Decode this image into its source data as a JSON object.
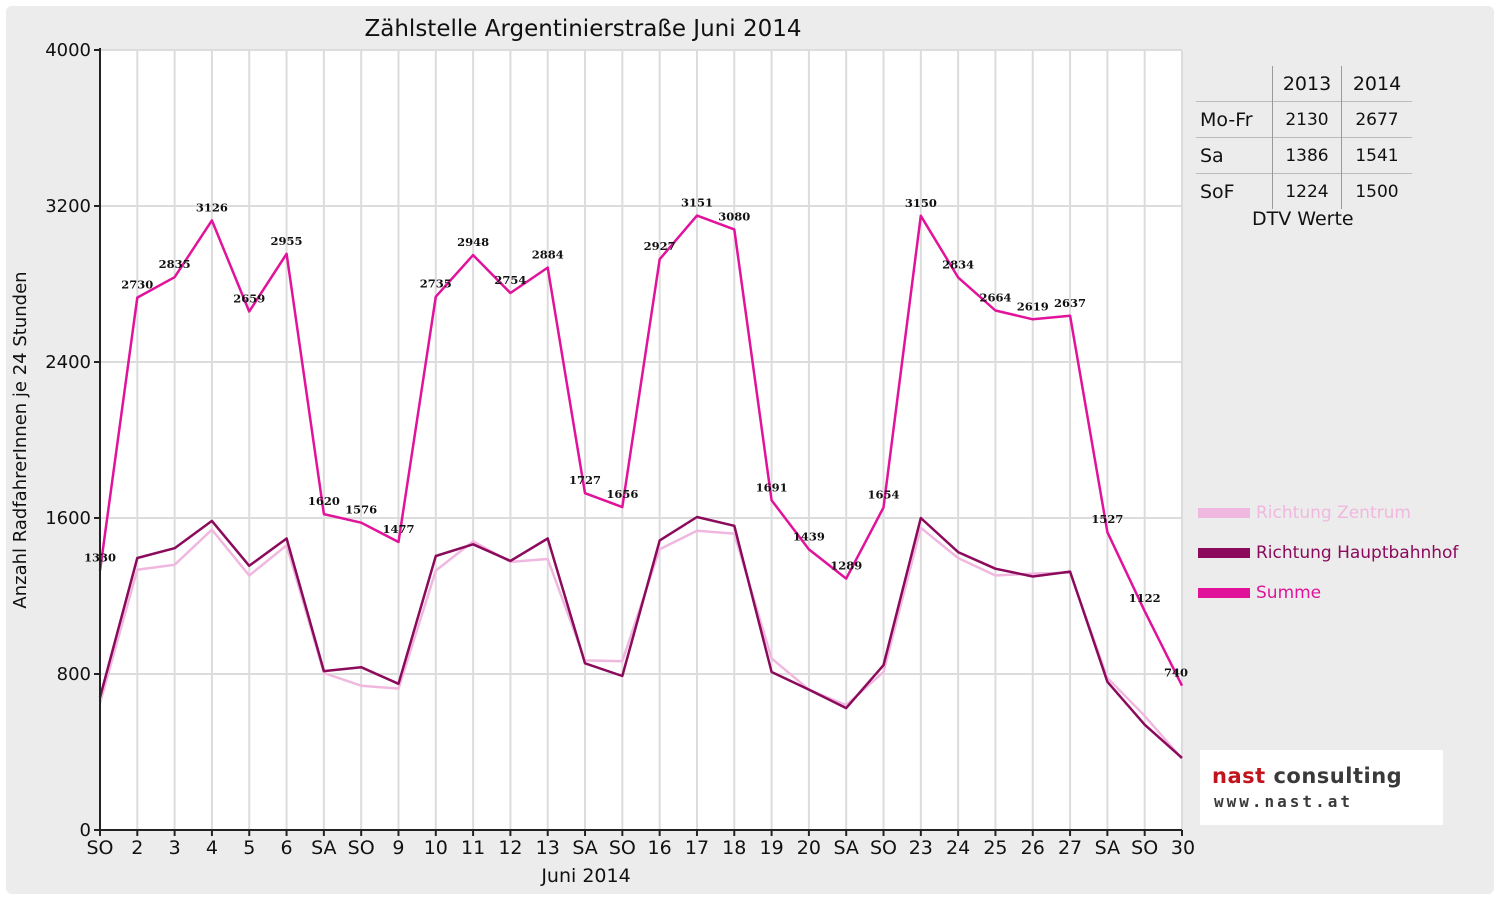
{
  "chart_data": {
    "type": "line",
    "title": "Zählstelle Argentinierstraße Juni 2014",
    "xlabel": "Juni 2014",
    "ylabel": "Anzahl RadfahrerInnen je 24 Stunden",
    "ylim": [
      0,
      4000
    ],
    "yticks": [
      0,
      800,
      1600,
      2400,
      3200,
      4000
    ],
    "grid": true,
    "legend_position": "right",
    "categories": [
      "SO",
      "2",
      "3",
      "4",
      "5",
      "6",
      "SA",
      "SO",
      "9",
      "10",
      "11",
      "12",
      "13",
      "SA",
      "SO",
      "16",
      "17",
      "18",
      "19",
      "20",
      "SA",
      "SO",
      "23",
      "24",
      "25",
      "26",
      "27",
      "SA",
      "SO",
      "30"
    ],
    "red_categories": [
      0,
      7,
      8,
      14,
      18,
      21,
      28
    ],
    "series": [
      {
        "name": "Richtung Zentrum",
        "color": "#f0b8de",
        "values": [
          650,
          1335,
          1360,
          1540,
          1305,
          1460,
          805,
          740,
          725,
          1330,
          1480,
          1375,
          1390,
          870,
          865,
          1440,
          1535,
          1520,
          880,
          720,
          640,
          810,
          1550,
          1395,
          1305,
          1315,
          1320,
          780,
          585,
          365
        ]
      },
      {
        "name": "Richtung Hauptbahnhof",
        "color": "#8b0a5c",
        "values": [
          680,
          1395,
          1445,
          1585,
          1355,
          1495,
          815,
          835,
          750,
          1405,
          1465,
          1380,
          1495,
          855,
          790,
          1485,
          1605,
          1560,
          810,
          720,
          625,
          845,
          1600,
          1425,
          1340,
          1300,
          1325,
          760,
          540,
          370
        ]
      },
      {
        "name": "Summe",
        "color": "#e0139a",
        "values": [
          1330,
          2730,
          2835,
          3126,
          2659,
          2955,
          1620,
          1576,
          1477,
          2735,
          2948,
          2754,
          2884,
          1727,
          1656,
          2927,
          3151,
          3080,
          1691,
          1439,
          1289,
          1654,
          3150,
          2834,
          2664,
          2619,
          2637,
          1527,
          1122,
          740
        ],
        "data_labels": [
          "1330",
          "2730",
          "2835",
          "3126",
          "2659",
          "2955",
          "1620",
          "1576",
          "1477",
          "2735",
          "2948",
          "2754",
          "2884",
          "1727",
          "1656",
          "2927",
          "3151",
          "3080",
          "1691",
          "1439",
          "1289",
          "1654",
          "3150",
          "2834",
          "2664",
          "2619",
          "2637",
          "1527",
          "1122",
          "740"
        ]
      }
    ]
  },
  "dtv_table": {
    "caption": "DTV Werte",
    "columns": [
      "",
      "2013",
      "2014"
    ],
    "rows": [
      {
        "label": "Mo-Fr",
        "v2013": "2130",
        "v2014": "2677"
      },
      {
        "label": "Sa",
        "v2013": "1386",
        "v2014": "1541"
      },
      {
        "label": "SoF",
        "v2013": "1224",
        "v2014": "1500"
      }
    ]
  },
  "logo": {
    "name_part1": "nast",
    "name_part2": " consulting",
    "url": "www.nast.at"
  }
}
